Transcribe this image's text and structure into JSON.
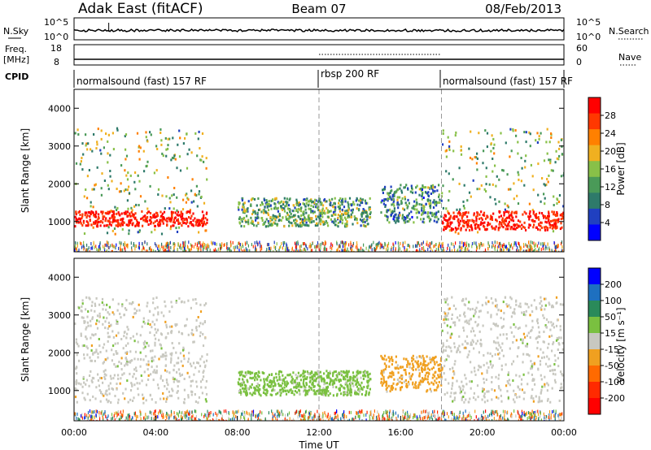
{
  "header": {
    "station": "Adak East (fitACF)",
    "beam": "Beam 07",
    "date": "08/Feb/2013"
  },
  "sky_panel": {
    "left_label": "N.Sky",
    "left_ticks": [
      "10^5",
      "10^0"
    ],
    "right_label": "N.Search",
    "right_ticks": [
      "10^5",
      "10^0"
    ],
    "legend_symbol": "dotted"
  },
  "freq_panel": {
    "left_label_line1": "Freq.",
    "left_label_line2": "[MHz]",
    "left_ticks": [
      "18",
      "8"
    ],
    "right_label": "Nave",
    "right_ticks": [
      "60",
      "0"
    ],
    "freq_level_mhz": 10.5,
    "nave_elevated_span_hours": [
      12.0,
      18.0
    ]
  },
  "cpid": {
    "label": "CPID",
    "segments": [
      {
        "name": "normalsound (fast) 157 RF",
        "start_hour": 0,
        "end_hour": 12
      },
      {
        "name": "rbsp 200 RF",
        "start_hour": 12,
        "end_hour": 18
      },
      {
        "name": "normalsound (fast) 157 RF",
        "start_hour": 18,
        "end_hour": 24
      }
    ]
  },
  "colors": {
    "power_scale": [
      "#0000ff",
      "#2040c0",
      "#2e7a6a",
      "#4a9a58",
      "#88c048",
      "#f0b020",
      "#ff8000",
      "#ff3800",
      "#ff0000"
    ],
    "velocity_scale": [
      "#0000ff",
      "#1e70c0",
      "#2a8a5a",
      "#7ac040",
      "#c8c8c0",
      "#f0a020",
      "#ff6a00",
      "#ff2a00",
      "#ff0000"
    ],
    "ground_scatter": "#c8c8c0"
  },
  "chart_data": [
    {
      "type": "heatmap",
      "name": "power",
      "xlabel": "",
      "ylabel": "Slant Range [km]",
      "xlim": [
        0,
        24
      ],
      "ylim": [
        200,
        4500
      ],
      "yticks": [
        "1000",
        "2000",
        "3000",
        "4000"
      ],
      "colorbar": {
        "label": "Power [dB]",
        "ticks": [
          "4",
          "8",
          "12",
          "16",
          "20",
          "24",
          "28"
        ],
        "range": [
          0,
          30
        ]
      },
      "features": [
        {
          "from_hour": 0.0,
          "to_hour": 6.5,
          "range_km": [
            700,
            3500
          ],
          "strong_band_km": [
            900,
            1300
          ],
          "value_db": 26
        },
        {
          "from_hour": 8.0,
          "to_hour": 14.5,
          "range_km": [
            900,
            1650
          ],
          "value_db": 12
        },
        {
          "from_hour": 15.0,
          "to_hour": 18.0,
          "range_km": [
            1000,
            2000
          ],
          "value_db": 10
        },
        {
          "from_hour": 18.0,
          "to_hour": 24.0,
          "range_km": [
            700,
            3500
          ],
          "strong_band_km": [
            800,
            1300
          ],
          "value_db": 28
        }
      ]
    },
    {
      "type": "heatmap",
      "name": "velocity",
      "xlabel": "Time UT",
      "ylabel": "Slant Range [km]",
      "xlim": [
        0,
        24
      ],
      "ylim": [
        200,
        4500
      ],
      "xticks": [
        "00:00",
        "04:00",
        "08:00",
        "12:00",
        "16:00",
        "20:00",
        "00:00"
      ],
      "yticks": [
        "1000",
        "2000",
        "3000",
        "4000"
      ],
      "colorbar": {
        "label": "Velocity [m s⁻¹]",
        "ticks": [
          "200",
          "100",
          "50",
          "15",
          "-15",
          "-50",
          "-100",
          "-200"
        ],
        "range": [
          -250,
          250
        ]
      },
      "features": [
        {
          "from_hour": 0.0,
          "to_hour": 6.5,
          "range_km": [
            700,
            3500
          ],
          "value_ms": 0,
          "ground_scatter": true
        },
        {
          "from_hour": 8.0,
          "to_hour": 14.5,
          "range_km": [
            900,
            1550
          ],
          "value_ms": 40
        },
        {
          "from_hour": 15.0,
          "to_hour": 18.0,
          "range_km": [
            1000,
            1950
          ],
          "value_ms": -40
        },
        {
          "from_hour": 18.0,
          "to_hour": 24.0,
          "range_km": [
            700,
            3500
          ],
          "value_ms": 0,
          "ground_scatter": true
        }
      ]
    }
  ]
}
